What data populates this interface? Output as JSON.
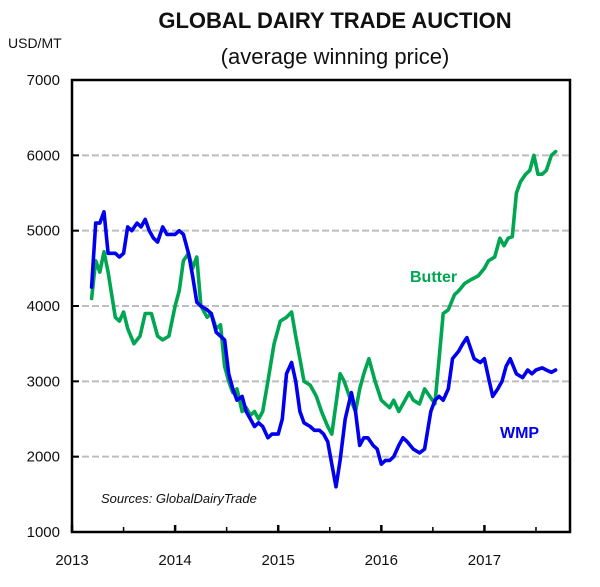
{
  "chart_data": {
    "type": "line",
    "title": "GLOBAL DAIRY TRADE AUCTION",
    "subtitle": "(average winning price)",
    "ylabel": "USD/MT",
    "xlabel": "",
    "ylim": [
      1000,
      7000
    ],
    "xlim": [
      2013.0,
      2017.83
    ],
    "yticks": [
      1000,
      2000,
      3000,
      4000,
      5000,
      6000,
      7000
    ],
    "ytick_labels": [
      "1000",
      "2000",
      "3000",
      "4000",
      "5000",
      "6000",
      "7000"
    ],
    "xticks": [
      2013,
      2014,
      2015,
      2016,
      2017
    ],
    "xtick_labels": [
      "2013",
      "2014",
      "2015",
      "2016",
      "2017"
    ],
    "x_minor_ticks": [
      2013.5,
      2014.5,
      2015.5,
      2016.5,
      2017.5
    ],
    "grid": "horizontal dashed",
    "source": "Sources: GlobalDairyTrade",
    "series": [
      {
        "name": "Butter",
        "color": "#00a651",
        "label_position": "mid-right",
        "x": [
          2013.19,
          2013.23,
          2013.27,
          2013.31,
          2013.35,
          2013.42,
          2013.46,
          2013.5,
          2013.54,
          2013.6,
          2013.66,
          2013.71,
          2013.77,
          2013.83,
          2013.88,
          2013.94,
          2014.0,
          2014.04,
          2014.08,
          2014.13,
          2014.17,
          2014.21,
          2014.25,
          2014.31,
          2014.35,
          2014.4,
          2014.44,
          2014.48,
          2014.52,
          2014.56,
          2014.6,
          2014.65,
          2014.69,
          2014.73,
          2014.77,
          2014.81,
          2014.85,
          2014.9,
          2014.96,
          2015.02,
          2015.08,
          2015.13,
          2015.17,
          2015.21,
          2015.25,
          2015.31,
          2015.37,
          2015.42,
          2015.48,
          2015.52,
          2015.56,
          2015.6,
          2015.64,
          2015.69,
          2015.75,
          2015.79,
          2015.83,
          2015.88,
          2015.94,
          2016.0,
          2016.04,
          2016.08,
          2016.12,
          2016.17,
          2016.21,
          2016.27,
          2016.31,
          2016.37,
          2016.42,
          2016.48,
          2016.52,
          2016.56,
          2016.6,
          2016.65,
          2016.71,
          2016.75,
          2016.81,
          2016.87,
          2016.94,
          2017.0,
          2017.04,
          2017.1,
          2017.15,
          2017.19,
          2017.23,
          2017.27,
          2017.31,
          2017.35,
          2017.4,
          2017.44,
          2017.48,
          2017.52,
          2017.56,
          2017.6,
          2017.65,
          2017.69
        ],
        "values": [
          4100,
          4600,
          4450,
          4720,
          4450,
          3850,
          3800,
          3920,
          3700,
          3500,
          3600,
          3900,
          3900,
          3600,
          3550,
          3600,
          4000,
          4200,
          4600,
          4700,
          4500,
          4650,
          4000,
          3850,
          3900,
          3700,
          3750,
          3200,
          3000,
          2850,
          2900,
          2600,
          2650,
          2550,
          2600,
          2500,
          2600,
          3000,
          3500,
          3800,
          3850,
          3920,
          3600,
          3300,
          3000,
          2950,
          2800,
          2600,
          2400,
          2300,
          2700,
          3100,
          3000,
          2800,
          2600,
          2900,
          3100,
          3300,
          3000,
          2750,
          2700,
          2650,
          2750,
          2600,
          2700,
          2850,
          2750,
          2700,
          2900,
          2780,
          2700,
          3300,
          3900,
          3950,
          4150,
          4200,
          4300,
          4350,
          4400,
          4500,
          4600,
          4650,
          4900,
          4800,
          4900,
          4920,
          5500,
          5650,
          5750,
          5800,
          6000,
          5750,
          5750,
          5800,
          6000,
          6050
        ]
      },
      {
        "name": "WMP",
        "color": "#0000ee",
        "label_position": "bottom-right",
        "x": [
          2013.19,
          2013.23,
          2013.27,
          2013.31,
          2013.35,
          2013.42,
          2013.46,
          2013.5,
          2013.54,
          2013.58,
          2013.63,
          2013.67,
          2013.71,
          2013.75,
          2013.79,
          2013.83,
          2013.88,
          2013.92,
          2013.96,
          2014.0,
          2014.04,
          2014.08,
          2014.13,
          2014.17,
          2014.21,
          2014.25,
          2014.31,
          2014.35,
          2014.4,
          2014.44,
          2014.48,
          2014.52,
          2014.56,
          2014.6,
          2014.65,
          2014.69,
          2014.73,
          2014.77,
          2014.81,
          2014.85,
          2014.9,
          2014.94,
          2015.0,
          2015.04,
          2015.08,
          2015.13,
          2015.17,
          2015.21,
          2015.25,
          2015.31,
          2015.35,
          2015.4,
          2015.44,
          2015.48,
          2015.52,
          2015.56,
          2015.6,
          2015.65,
          2015.71,
          2015.75,
          2015.79,
          2015.83,
          2015.87,
          2015.92,
          2015.96,
          2016.0,
          2016.04,
          2016.08,
          2016.12,
          2016.17,
          2016.21,
          2016.25,
          2016.31,
          2016.37,
          2016.42,
          2016.48,
          2016.52,
          2016.56,
          2016.6,
          2016.65,
          2016.69,
          2016.75,
          2016.79,
          2016.83,
          2016.9,
          2016.96,
          2017.0,
          2017.04,
          2017.08,
          2017.13,
          2017.17,
          2017.21,
          2017.25,
          2017.31,
          2017.37,
          2017.42,
          2017.46,
          2017.5,
          2017.56,
          2017.6,
          2017.65,
          2017.69
        ],
        "values": [
          4250,
          5100,
          5100,
          5250,
          4700,
          4700,
          4650,
          4700,
          5050,
          5000,
          5100,
          5050,
          5150,
          5000,
          4900,
          4850,
          5050,
          4950,
          4950,
          4950,
          5000,
          4950,
          4700,
          4400,
          4050,
          4000,
          3950,
          3900,
          3650,
          3600,
          3550,
          3100,
          2900,
          2750,
          2800,
          2600,
          2500,
          2400,
          2450,
          2400,
          2250,
          2300,
          2300,
          2500,
          3100,
          3250,
          3000,
          2600,
          2450,
          2400,
          2350,
          2350,
          2300,
          2200,
          1900,
          1600,
          1950,
          2500,
          2850,
          2600,
          2150,
          2250,
          2250,
          2150,
          2100,
          1900,
          1950,
          1950,
          2000,
          2150,
          2250,
          2200,
          2100,
          2050,
          2100,
          2600,
          2750,
          2800,
          2750,
          2900,
          3300,
          3400,
          3500,
          3580,
          3300,
          3250,
          3300,
          3050,
          2800,
          2900,
          3000,
          3200,
          3300,
          3100,
          3050,
          3150,
          3100,
          3150,
          3180,
          3150,
          3120,
          3150
        ]
      }
    ]
  }
}
